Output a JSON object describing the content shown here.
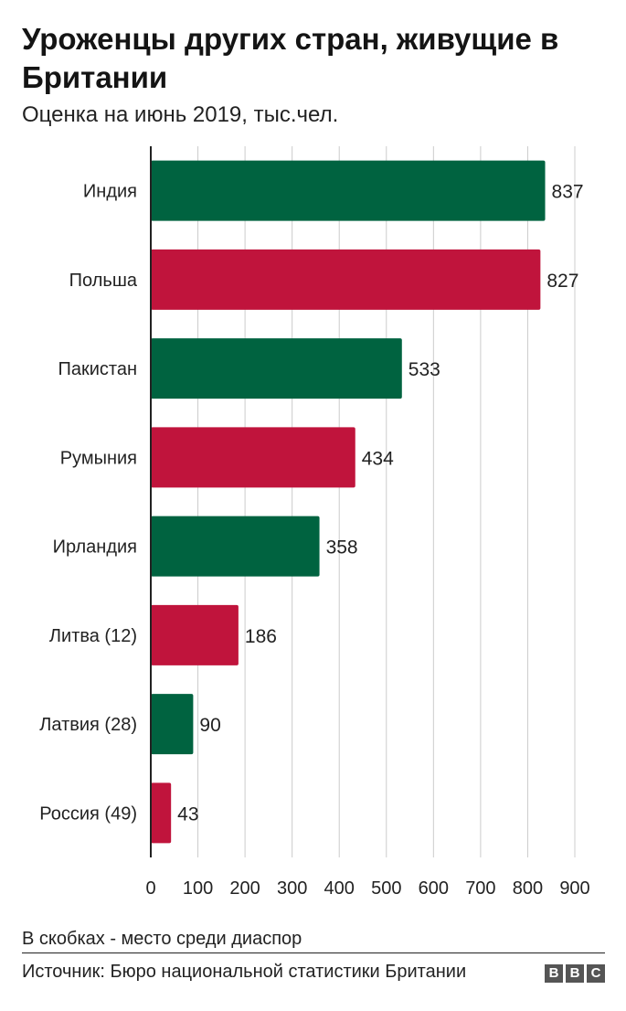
{
  "title": "Уроженцы других стран, живущие в Британии",
  "subtitle": "Оценка на июнь 2019, тыс.чел.",
  "note": "В скобках - место среди диаспор",
  "source": "Источник: Бюро национальной статистики Британии",
  "logo": [
    "B",
    "B",
    "C"
  ],
  "colors": {
    "green": "#006340",
    "red": "#c0143c",
    "grid": "#cccccc",
    "axis": "#222222"
  },
  "chart_data": {
    "type": "bar",
    "orientation": "horizontal",
    "categories": [
      "Индия",
      "Польша",
      "Пакистан",
      "Румыния",
      "Ирландия",
      "Литва (12)",
      "Латвия (28)",
      "Россия (49)"
    ],
    "values": [
      837,
      827,
      533,
      434,
      358,
      186,
      90,
      43
    ],
    "value_labels": [
      "837",
      "827",
      "533",
      "434",
      "358",
      "186",
      "90",
      "43"
    ],
    "bar_colors": [
      "#006340",
      "#c0143c",
      "#006340",
      "#c0143c",
      "#006340",
      "#c0143c",
      "#006340",
      "#c0143c"
    ],
    "xlim": [
      0,
      900
    ],
    "xticks": [
      0,
      100,
      200,
      300,
      400,
      500,
      600,
      700,
      800,
      900
    ],
    "grid": true
  }
}
